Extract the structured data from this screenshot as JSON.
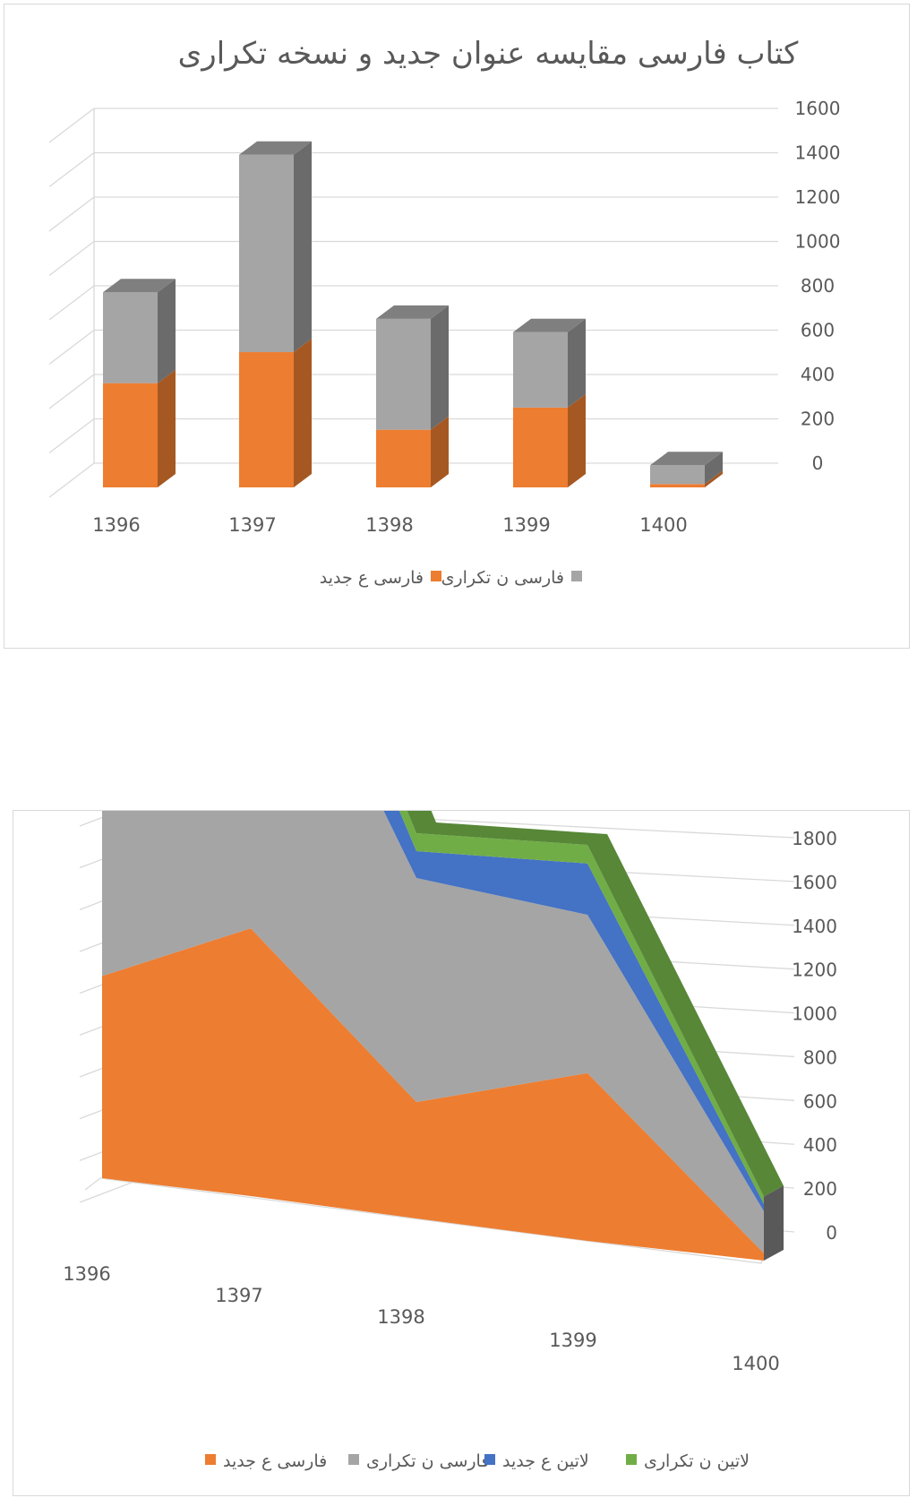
{
  "chart_data": [
    {
      "type": "bar",
      "stacked": true,
      "three_d": true,
      "title": "کتاب فارسی مقایسه عنوان جدید و نسخه تکراری",
      "categories": [
        "1396",
        "1397",
        "1398",
        "1399",
        "1400"
      ],
      "y_ticks": [
        "0",
        "200",
        "400",
        "600",
        "800",
        "1000",
        "1200",
        "1400",
        "1600"
      ],
      "ylim": [
        0,
        1600
      ],
      "grid": true,
      "legend_position": "bottom",
      "series": [
        {
          "name": "فارسی ع جدید",
          "color": "#ED7D31",
          "values": [
            470,
            610,
            260,
            360,
            15
          ]
        },
        {
          "name": "فارسی ن تکراری",
          "color": "#A5A5A5",
          "values": [
            410,
            890,
            500,
            340,
            85
          ]
        }
      ]
    },
    {
      "type": "area",
      "stacked": true,
      "three_d": true,
      "title": "",
      "categories": [
        "1396",
        "1397",
        "1398",
        "1399",
        "1400"
      ],
      "y_ticks": [
        "0",
        "200",
        "400",
        "600",
        "800",
        "1000",
        "1200",
        "1400",
        "1600",
        "1800"
      ],
      "ylim": [
        0,
        1800
      ],
      "grid": true,
      "legend_position": "bottom",
      "series": [
        {
          "name": "فارسی ع جدید",
          "color": "#ED7D31",
          "values": [
            470,
            610,
            260,
            360,
            15
          ]
        },
        {
          "name": "فارسی ن تکراری",
          "color": "#A5A5A5",
          "values": [
            410,
            890,
            500,
            340,
            85
          ]
        },
        {
          "name": "لاتین ع جدید",
          "color": "#4472C4",
          "values": [
            130,
            180,
            60,
            110,
            15
          ]
        },
        {
          "name": "لاتین ن تکراری",
          "color": "#70AD47",
          "values": [
            30,
            60,
            40,
            40,
            15
          ]
        }
      ]
    }
  ]
}
